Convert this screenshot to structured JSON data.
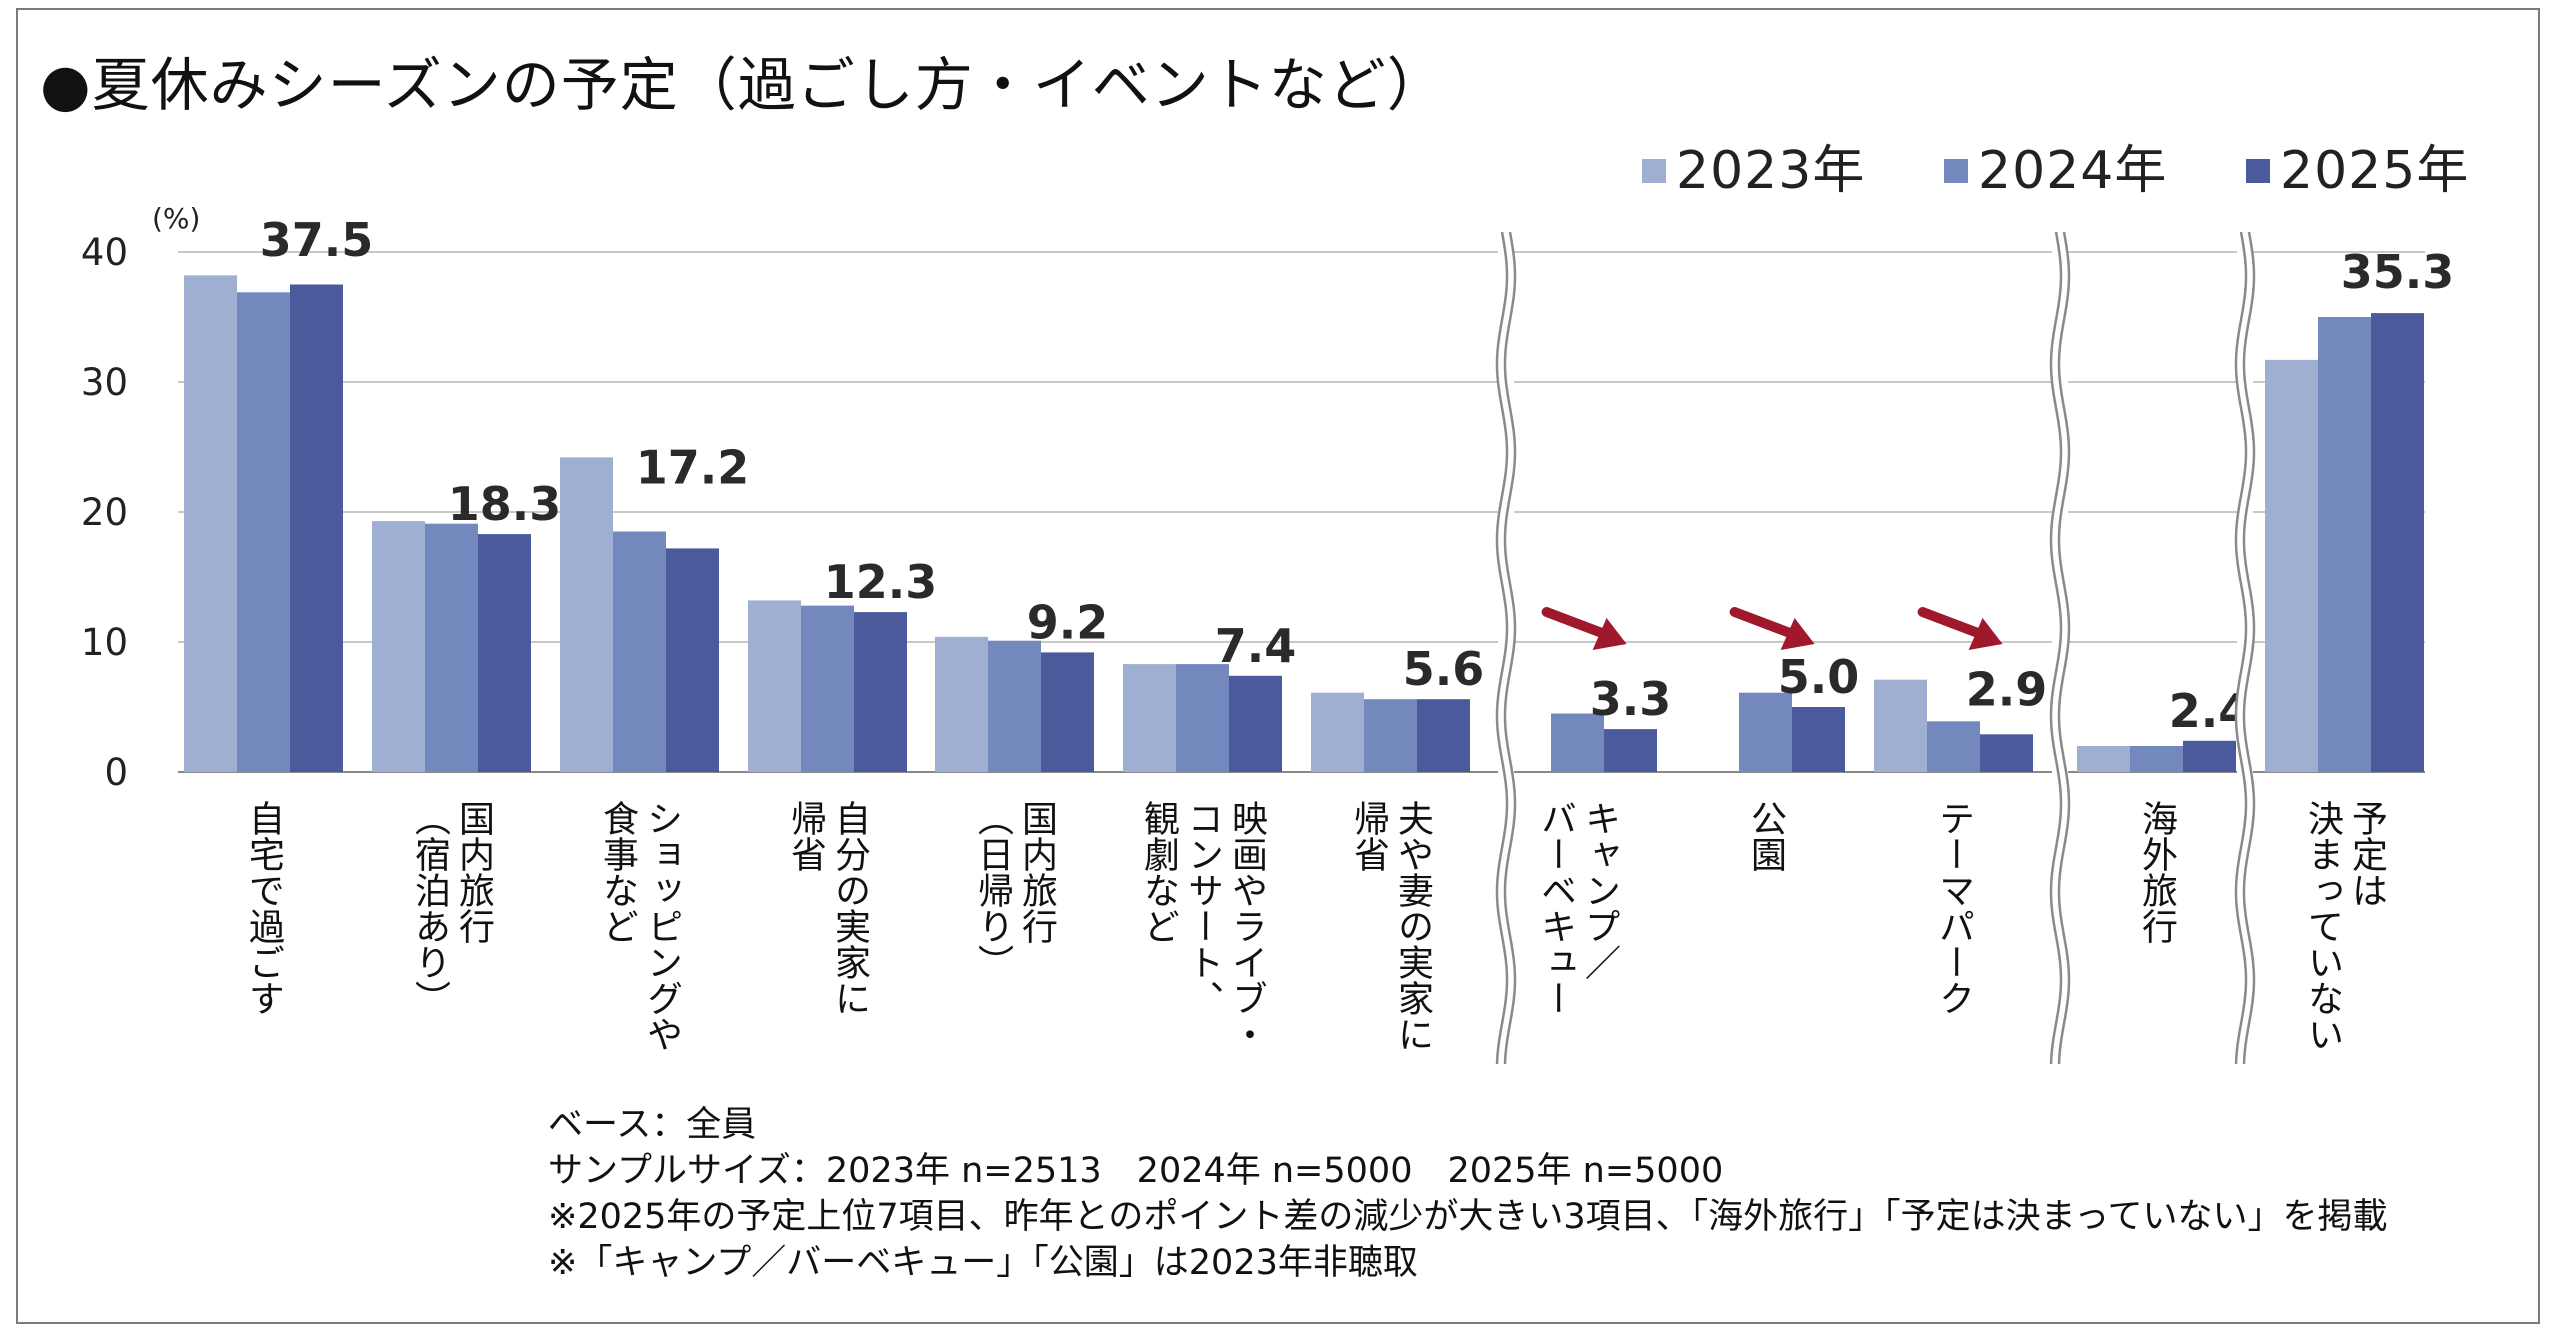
{
  "title": "●夏休みシーズンの予定（過ごし方・イベントなど）",
  "chart_data": {
    "type": "bar",
    "unit_label": "(%)",
    "ylim": [
      0,
      40
    ],
    "yticks": [
      "0",
      "10",
      "20",
      "30",
      "40"
    ],
    "grid": true,
    "legend_position": "top-right",
    "series": [
      {
        "name": "2023年",
        "color": "#9eafd1",
        "values": [
          38.2,
          19.3,
          24.2,
          13.2,
          10.4,
          8.3,
          6.1,
          null,
          null,
          7.1,
          2.0,
          31.7
        ]
      },
      {
        "name": "2024年",
        "color": "#7389bd",
        "values": [
          36.9,
          19.1,
          18.5,
          12.8,
          10.1,
          8.3,
          5.6,
          4.5,
          6.1,
          3.9,
          2.0,
          35.0
        ]
      },
      {
        "name": "2025年",
        "color": "#4b5a9b",
        "values": [
          37.5,
          18.3,
          17.2,
          12.3,
          9.2,
          7.4,
          5.6,
          3.3,
          5.0,
          2.9,
          2.4,
          35.3
        ]
      }
    ],
    "categories": [
      [
        "自宅で過ごす"
      ],
      [
        "国内旅行",
        "（宿泊あり）"
      ],
      [
        "ショッピングや",
        "食事など"
      ],
      [
        "自分の実家に",
        "帰省"
      ],
      [
        "国内旅行",
        "（日帰り）"
      ],
      [
        "映画やライブ・",
        "コンサート、",
        "観劇など"
      ],
      [
        "夫や妻の実家に",
        "帰省"
      ],
      [
        "キャンプ／",
        "バーベキュー"
      ],
      [
        "公園"
      ],
      [
        "テーマパーク"
      ],
      [
        "海外旅行"
      ],
      [
        "予定は",
        "決まっていない"
      ]
    ],
    "data_labels": [
      "37.5",
      "18.3",
      "17.2",
      "12.3",
      "9.2",
      "7.4",
      "5.6",
      "3.3",
      "5.0",
      "2.9",
      "2.4",
      "35.3"
    ],
    "decrease_arrows": [
      7,
      8,
      9
    ],
    "arrow_color": "#a0182b",
    "axis_breaks": "wavy"
  },
  "notes": [
    "ベース：全員",
    "サンプルサイズ：2023年 n=2513　2024年 n=5000　2025年 n=5000",
    "※2025年の予定上位7項目、昨年とのポイント差の減少が大きい3項目、「海外旅行」「予定は決まっていない」を掲載",
    "※「キャンプ／バーベキュー」「公園」は2023年非聴取"
  ]
}
